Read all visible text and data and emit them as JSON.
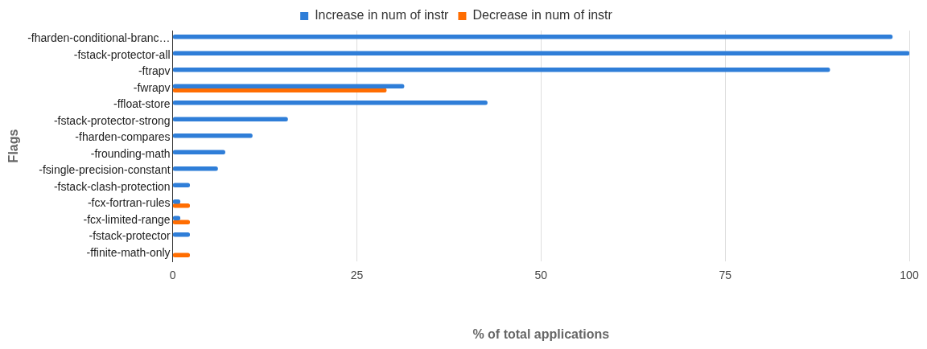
{
  "chart_data": {
    "type": "bar",
    "orientation": "horizontal",
    "xlabel": "% of total applications",
    "ylabel": "Flags",
    "categories": [
      "-fharden-conditional-branc…",
      "-fstack-protector-all",
      "-ftrapv",
      "-fwrapv",
      "-ffloat-store",
      "-fstack-protector-strong",
      "-fharden-compares",
      "-frounding-math",
      "-fsingle-precision-constant",
      "-fstack-clash-protection",
      "-fcx-fortran-rules",
      "-fcx-limited-range",
      "-fstack-protector",
      "-ffinite-math-only"
    ],
    "series": [
      {
        "name": "Increase in num of instr",
        "color": "#2f7ed8",
        "values": [
          97.7,
          100,
          89.2,
          31.4,
          42.7,
          15.6,
          10.8,
          7.1,
          6.1,
          2.3,
          1.0,
          1.0,
          2.3,
          null
        ]
      },
      {
        "name": "Decrease in num of instr",
        "color": "#ff6d01",
        "values": [
          null,
          null,
          null,
          29.0,
          null,
          null,
          null,
          null,
          null,
          null,
          2.3,
          2.3,
          null,
          2.3
        ]
      }
    ],
    "xlim": [
      0,
      100
    ],
    "xticks": [
      0,
      25,
      50,
      75,
      100
    ],
    "grid": "x",
    "legend": "top"
  }
}
